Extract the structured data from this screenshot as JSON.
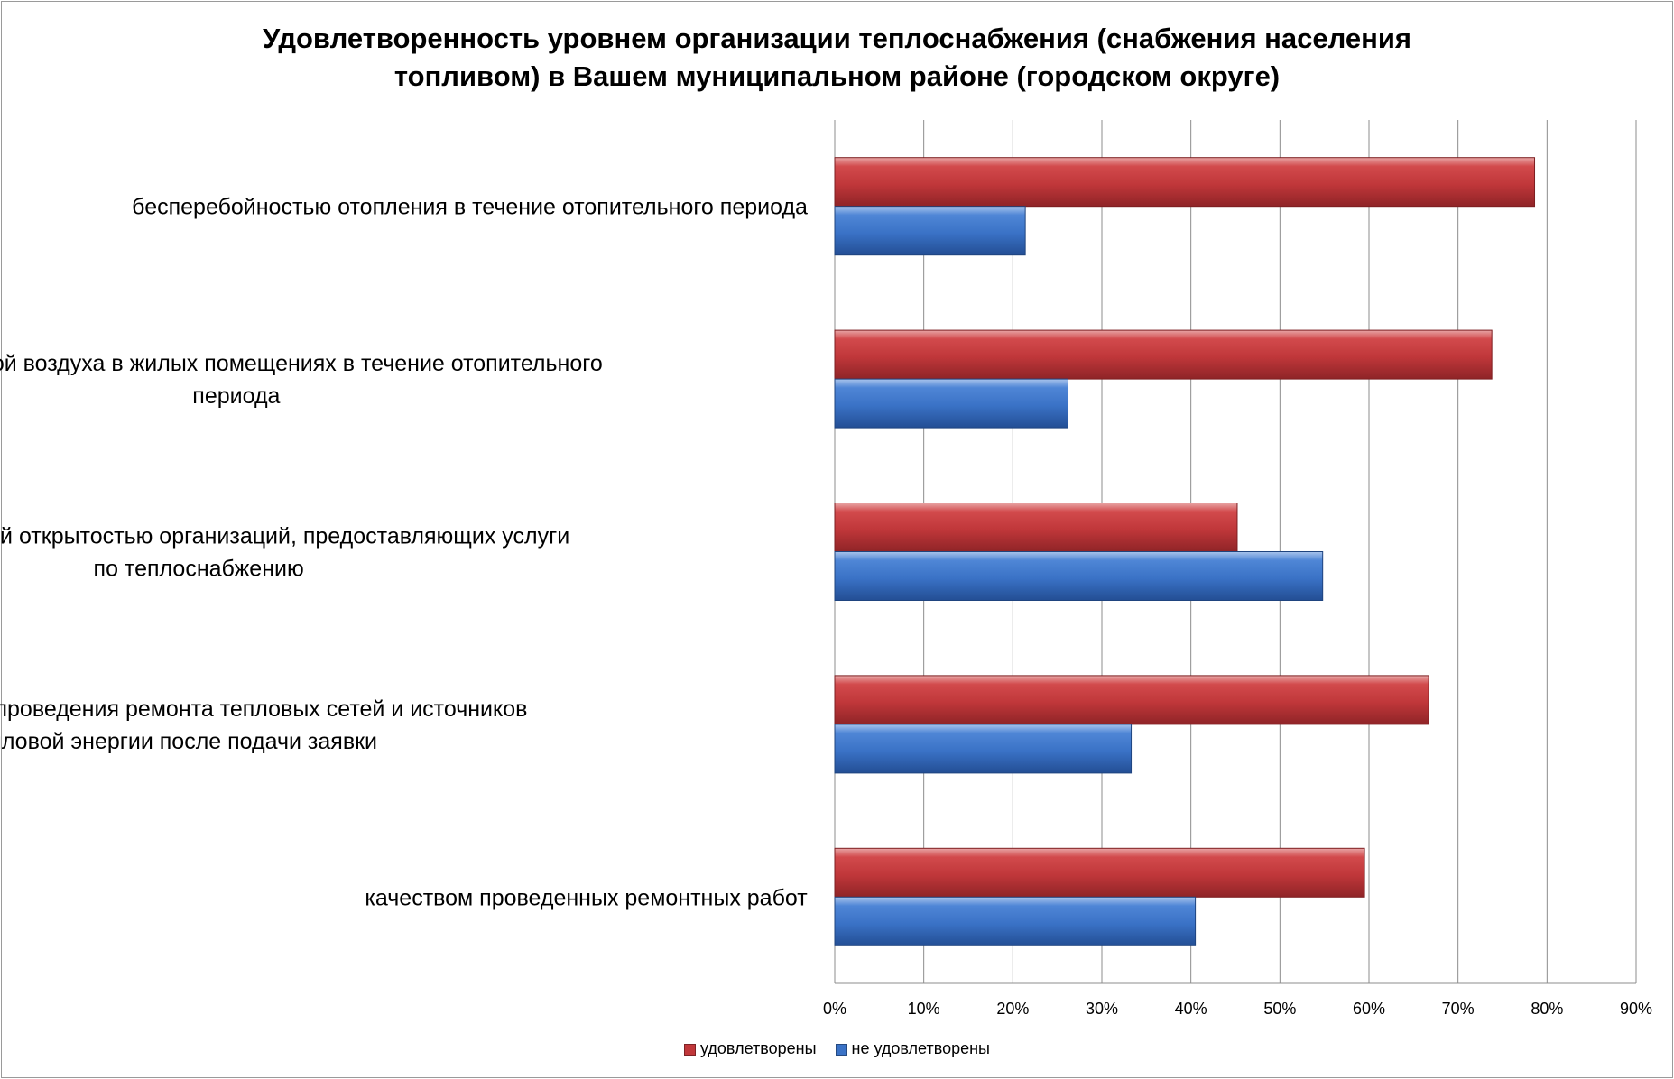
{
  "chart_data": {
    "type": "bar",
    "orientation": "horizontal",
    "title_line1": "Удовлетворенность уровнем организации теплоснабжения (снабжения населения",
    "title_line2": "топливом) в Вашем муниципальном районе (городском округе)",
    "categories": [
      [
        "бесперебойностью  отопления в течение отопительного периода"
      ],
      [
        "температурой  воздуха в жилых помещениях в течение отопительного",
        "периода"
      ],
      [
        "информационной открытостью организаций, предоставляющих услуги",
        "по теплоснабжению"
      ],
      [
        "оперативностью проведения ремонта тепловых сетей и источников",
        "тепловой энергии после подачи заявки"
      ],
      [
        "качеством проведенных ремонтных работ"
      ]
    ],
    "series": [
      {
        "name": "удовлетворены",
        "color": "#C0373A",
        "values": [
          78.6,
          73.8,
          45.2,
          66.7,
          59.5
        ]
      },
      {
        "name": "не удовлетворены",
        "color": "#3A72C6",
        "values": [
          21.4,
          26.2,
          54.8,
          33.3,
          40.5
        ]
      }
    ],
    "xlim": [
      0,
      90
    ],
    "xticks": [
      0,
      10,
      20,
      30,
      40,
      50,
      60,
      70,
      80,
      90
    ],
    "tick_suffix": "%",
    "grid": true,
    "legend_position": "bottom"
  }
}
